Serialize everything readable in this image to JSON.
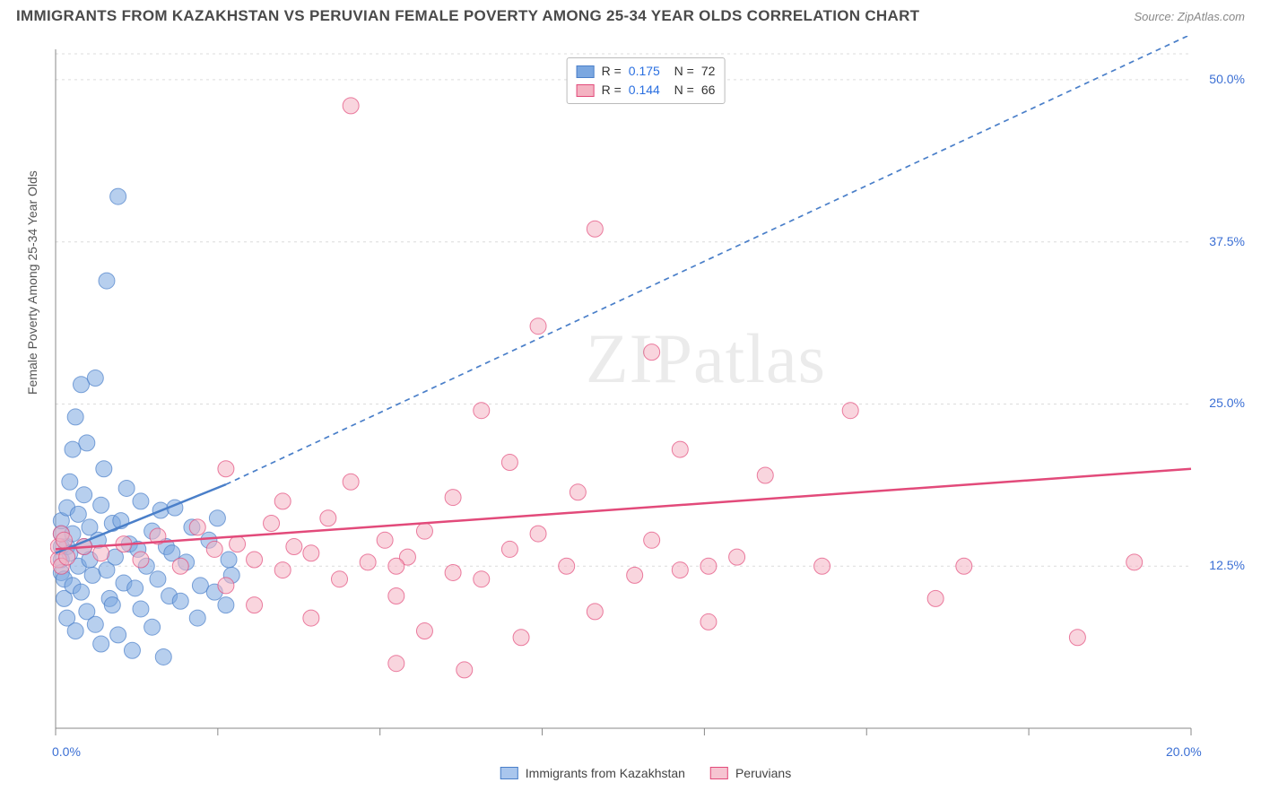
{
  "title": "IMMIGRANTS FROM KAZAKHSTAN VS PERUVIAN FEMALE POVERTY AMONG 25-34 YEAR OLDS CORRELATION CHART",
  "source": "Source: ZipAtlas.com",
  "watermark": "ZIPatlas",
  "chart": {
    "type": "scatter",
    "ylabel": "Female Poverty Among 25-34 Year Olds",
    "xlim": [
      0,
      20
    ],
    "ylim": [
      0,
      52
    ],
    "xticks": [
      0,
      2.857,
      5.714,
      8.571,
      11.428,
      14.285,
      17.142,
      20
    ],
    "xtick_labels": [
      "0.0%",
      "",
      "",
      "",
      "",
      "",
      "",
      "20.0%"
    ],
    "yticks": [
      12.5,
      25.0,
      37.5,
      50.0,
      52.0
    ],
    "ytick_labels": [
      "12.5%",
      "25.0%",
      "37.5%",
      "50.0%",
      ""
    ],
    "background_color": "#ffffff",
    "grid_color": "#dcdcdc",
    "axis_color": "#888888",
    "marker_radius": 9,
    "marker_opacity": 0.55,
    "series": [
      {
        "name": "Immigrants from Kazakhstan",
        "color": "#7ba7e0",
        "stroke": "#4a7fc9",
        "r_value": "0.175",
        "n_value": "72",
        "trend": {
          "p0": [
            0,
            13.5
          ],
          "p1_solid": [
            3.0,
            18.8
          ],
          "p1_ext": [
            20,
            53.5
          ],
          "width": 2.5,
          "dash": "6,5"
        },
        "points": [
          [
            0.1,
            14
          ],
          [
            0.1,
            13
          ],
          [
            0.1,
            12
          ],
          [
            0.1,
            15
          ],
          [
            0.1,
            16
          ],
          [
            0.15,
            10
          ],
          [
            0.15,
            11.5
          ],
          [
            0.2,
            14
          ],
          [
            0.2,
            17
          ],
          [
            0.2,
            8.5
          ],
          [
            0.25,
            13.5
          ],
          [
            0.25,
            19
          ],
          [
            0.3,
            15
          ],
          [
            0.3,
            11
          ],
          [
            0.3,
            21.5
          ],
          [
            0.35,
            7.5
          ],
          [
            0.35,
            24
          ],
          [
            0.4,
            12.5
          ],
          [
            0.4,
            16.5
          ],
          [
            0.45,
            10.5
          ],
          [
            0.45,
            26.5
          ],
          [
            0.5,
            14
          ],
          [
            0.5,
            18
          ],
          [
            0.55,
            22
          ],
          [
            0.55,
            9
          ],
          [
            0.6,
            13
          ],
          [
            0.6,
            15.5
          ],
          [
            0.65,
            11.8
          ],
          [
            0.7,
            27
          ],
          [
            0.7,
            8
          ],
          [
            0.75,
            14.5
          ],
          [
            0.8,
            17.2
          ],
          [
            0.8,
            6.5
          ],
          [
            0.85,
            20
          ],
          [
            0.9,
            12.2
          ],
          [
            0.9,
            34.5
          ],
          [
            0.95,
            10
          ],
          [
            1.0,
            15.8
          ],
          [
            1.0,
            9.5
          ],
          [
            1.05,
            13.2
          ],
          [
            1.1,
            41
          ],
          [
            1.1,
            7.2
          ],
          [
            1.15,
            16
          ],
          [
            1.2,
            11.2
          ],
          [
            1.25,
            18.5
          ],
          [
            1.3,
            14.2
          ],
          [
            1.35,
            6
          ],
          [
            1.4,
            10.8
          ],
          [
            1.45,
            13.8
          ],
          [
            1.5,
            17.5
          ],
          [
            1.5,
            9.2
          ],
          [
            1.6,
            12.5
          ],
          [
            1.7,
            15.2
          ],
          [
            1.7,
            7.8
          ],
          [
            1.8,
            11.5
          ],
          [
            1.85,
            16.8
          ],
          [
            1.9,
            5.5
          ],
          [
            1.95,
            14
          ],
          [
            2.0,
            10.2
          ],
          [
            2.05,
            13.5
          ],
          [
            2.1,
            17
          ],
          [
            2.2,
            9.8
          ],
          [
            2.3,
            12.8
          ],
          [
            2.4,
            15.5
          ],
          [
            2.5,
            8.5
          ],
          [
            2.55,
            11
          ],
          [
            2.7,
            14.5
          ],
          [
            2.8,
            10.5
          ],
          [
            2.85,
            16.2
          ],
          [
            3.0,
            9.5
          ],
          [
            3.05,
            13
          ],
          [
            3.1,
            11.8
          ]
        ]
      },
      {
        "name": "Peruvians",
        "color": "#f4b3c2",
        "stroke": "#e24a7a",
        "r_value": "0.144",
        "n_value": "66",
        "trend": {
          "p0": [
            0,
            13.8
          ],
          "p1_solid": [
            20,
            20
          ],
          "width": 2.5
        },
        "points": [
          [
            0.05,
            14
          ],
          [
            0.05,
            13
          ],
          [
            0.1,
            15
          ],
          [
            0.1,
            12.5
          ],
          [
            0.15,
            14.5
          ],
          [
            0.2,
            13.2
          ],
          [
            0.5,
            14
          ],
          [
            0.8,
            13.5
          ],
          [
            1.2,
            14.2
          ],
          [
            1.5,
            13
          ],
          [
            1.8,
            14.8
          ],
          [
            2.2,
            12.5
          ],
          [
            2.5,
            15.5
          ],
          [
            2.8,
            13.8
          ],
          [
            3.0,
            11
          ],
          [
            3.0,
            20
          ],
          [
            3.2,
            14.2
          ],
          [
            3.5,
            13
          ],
          [
            3.5,
            9.5
          ],
          [
            3.8,
            15.8
          ],
          [
            4.0,
            12.2
          ],
          [
            4.0,
            17.5
          ],
          [
            4.2,
            14
          ],
          [
            4.5,
            8.5
          ],
          [
            4.5,
            13.5
          ],
          [
            4.8,
            16.2
          ],
          [
            5.0,
            11.5
          ],
          [
            5.2,
            19
          ],
          [
            5.2,
            48
          ],
          [
            5.5,
            12.8
          ],
          [
            5.8,
            14.5
          ],
          [
            6.0,
            10.2
          ],
          [
            6.0,
            5
          ],
          [
            6.2,
            13.2
          ],
          [
            6.5,
            15.2
          ],
          [
            6.5,
            7.5
          ],
          [
            7.0,
            12
          ],
          [
            7.0,
            17.8
          ],
          [
            7.2,
            4.5
          ],
          [
            7.5,
            11.5
          ],
          [
            7.5,
            24.5
          ],
          [
            8.0,
            13.8
          ],
          [
            8.0,
            20.5
          ],
          [
            8.2,
            7
          ],
          [
            8.5,
            15
          ],
          [
            8.5,
            31
          ],
          [
            9.0,
            12.5
          ],
          [
            9.2,
            18.2
          ],
          [
            9.5,
            9
          ],
          [
            9.5,
            38.5
          ],
          [
            10.2,
            11.8
          ],
          [
            10.5,
            14.5
          ],
          [
            10.5,
            29
          ],
          [
            11.0,
            12.2
          ],
          [
            11.0,
            21.5
          ],
          [
            11.5,
            8.2
          ],
          [
            12.0,
            13.2
          ],
          [
            12.5,
            19.5
          ],
          [
            13.5,
            12.5
          ],
          [
            14.0,
            24.5
          ],
          [
            15.5,
            10
          ],
          [
            16.0,
            12.5
          ],
          [
            18.0,
            7
          ],
          [
            19.0,
            12.8
          ],
          [
            11.5,
            12.5
          ],
          [
            6.0,
            12.5
          ]
        ]
      }
    ]
  },
  "legend_bottom": [
    {
      "label": "Immigrants from Kazakhstan",
      "fill": "#a9c6ed",
      "stroke": "#4a7fc9"
    },
    {
      "label": "Peruvians",
      "fill": "#f6c4d1",
      "stroke": "#e24a7a"
    }
  ]
}
